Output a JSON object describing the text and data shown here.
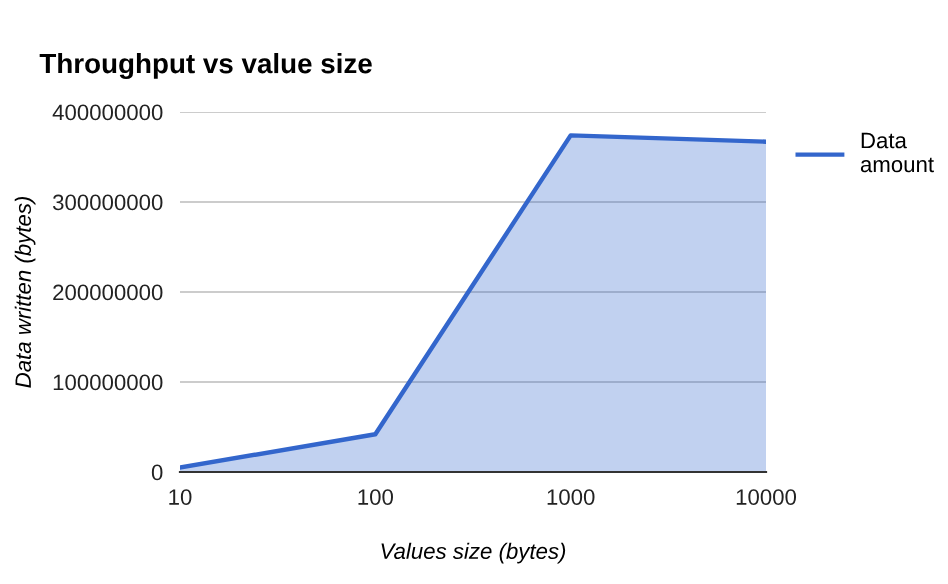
{
  "chart_data": {
    "type": "area",
    "title": "Throughput vs value size",
    "xlabel": "Values size (bytes)",
    "ylabel": "Data written (bytes)",
    "categories": [
      "10",
      "100",
      "1000",
      "10000"
    ],
    "series": [
      {
        "name": "Data amount",
        "color": "#3366cc",
        "values": [
          5000000,
          42000000,
          374000000,
          367000000
        ]
      }
    ],
    "ylim": [
      0,
      400000000
    ],
    "yticks": [
      0,
      100000000,
      200000000,
      300000000,
      400000000
    ],
    "grid": "y",
    "legend": "top right"
  }
}
